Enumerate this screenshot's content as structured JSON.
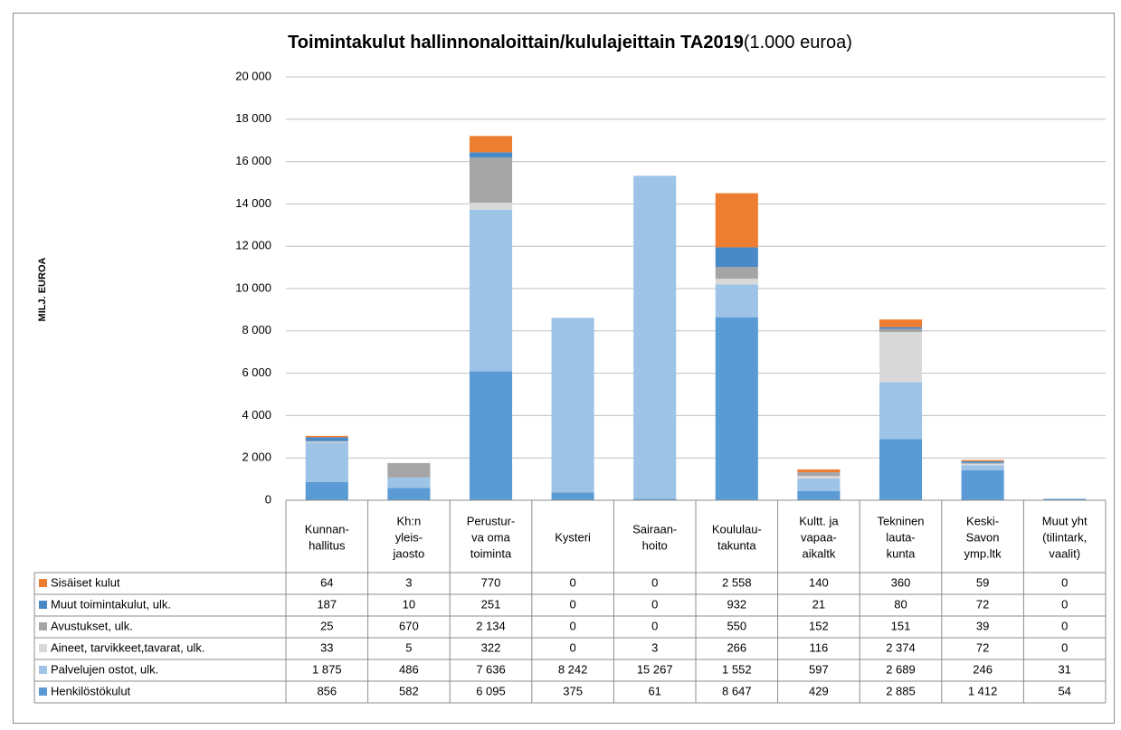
{
  "chart_data": {
    "type": "stacked_bar",
    "title": "Toimintakulut hallinnonaloittain/kululajeittain TA2019",
    "subtitle": "(1.000 euroa)",
    "y_label": "MILJ. EUROA",
    "categories": [
      [
        "Kunnan-",
        "hallitus"
      ],
      [
        "Kh:n",
        "yleis-",
        "jaosto"
      ],
      [
        "Perustur-",
        "va oma",
        "toiminta"
      ],
      [
        "Kysteri"
      ],
      [
        "Sairaan-",
        "hoito"
      ],
      [
        "Koululau-",
        "takunta"
      ],
      [
        "Kultt. ja",
        "vapaa-",
        "aikaltk"
      ],
      [
        "Tekninen",
        "lauta-",
        "kunta"
      ],
      [
        "Keski-",
        "Savon",
        "ymp.ltk"
      ],
      [
        "Muut yht",
        "(tilintark,",
        "vaalit)"
      ]
    ],
    "series": [
      {
        "name": "Henkilöstökulut",
        "color": "#5b9bd5",
        "values": [
          856,
          582,
          6095,
          375,
          61,
          8647,
          429,
          2885,
          1412,
          54
        ],
        "value_labels": [
          "856",
          "582",
          "6 095",
          "375",
          "61",
          "8 647",
          "429",
          "2 885",
          "1 412",
          "54"
        ]
      },
      {
        "name": "Palvelujen ostot, ulk.",
        "color": "#9dc3e6",
        "values": [
          1875,
          486,
          7636,
          8242,
          15267,
          1552,
          597,
          2689,
          246,
          31
        ],
        "value_labels": [
          "1 875",
          "486",
          "7 636",
          "8 242",
          "15 267",
          "1 552",
          "597",
          "2 689",
          "246",
          "31"
        ]
      },
      {
        "name": "Aineet, tarvikkeet,tavarat, ulk.",
        "color": "#d9d9d9",
        "values": [
          33,
          5,
          322,
          0,
          3,
          266,
          116,
          2374,
          72,
          0
        ],
        "value_labels": [
          "33",
          "5",
          "322",
          "0",
          "3",
          "266",
          "116",
          "2 374",
          "72",
          "0"
        ]
      },
      {
        "name": "Avustukset, ulk.",
        "color": "#a5a5a5",
        "values": [
          25,
          670,
          2134,
          0,
          0,
          550,
          152,
          151,
          39,
          0
        ],
        "value_labels": [
          "25",
          "670",
          "2 134",
          "0",
          "0",
          "550",
          "152",
          "151",
          "39",
          "0"
        ]
      },
      {
        "name": "Muut toimintakulut, ulk.",
        "color": "#4a89c8",
        "values": [
          187,
          10,
          251,
          0,
          0,
          932,
          21,
          80,
          72,
          0
        ],
        "value_labels": [
          "187",
          "10",
          "251",
          "0",
          "0",
          "932",
          "21",
          "80",
          "72",
          "0"
        ]
      },
      {
        "name": "Sisäiset kulut",
        "color": "#ed7d31",
        "values": [
          64,
          3,
          770,
          0,
          0,
          2558,
          140,
          360,
          59,
          0
        ],
        "value_labels": [
          "64",
          "3",
          "770",
          "0",
          "0",
          "2 558",
          "140",
          "360",
          "59",
          "0"
        ]
      }
    ],
    "ylim": [
      0,
      20000
    ],
    "yticks": [
      0,
      {
        "value": 2000,
        "label": "2 000"
      },
      {
        "value": 4000,
        "label": "4 000"
      },
      {
        "value": 6000,
        "label": "6 000"
      },
      {
        "value": 8000,
        "label": "8 000"
      },
      {
        "value": 10000,
        "label": "10 000"
      },
      {
        "value": 12000,
        "label": "12 000"
      },
      {
        "value": 14000,
        "label": "14 000"
      },
      {
        "value": 16000,
        "label": "16 000"
      },
      {
        "value": 18000,
        "label": "18 000"
      },
      {
        "value": 20000,
        "label": "20 000"
      }
    ],
    "grid": true
  }
}
